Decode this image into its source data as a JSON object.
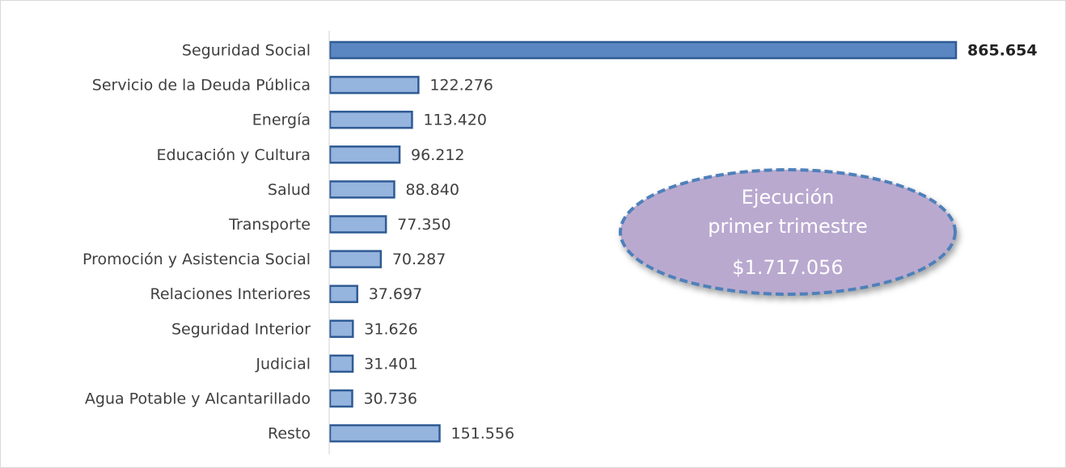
{
  "chart_data": {
    "type": "bar",
    "orientation": "horizontal",
    "categories": [
      "Seguridad Social",
      "Servicio de la Deuda Pública",
      "Energía",
      "Educación y Cultura",
      "Salud",
      "Transporte",
      "Promoción y Asistencia Social",
      "Relaciones Interiores",
      "Seguridad Interior",
      "Judicial",
      "Agua Potable y Alcantarillado",
      "Resto"
    ],
    "values": [
      865654,
      122276,
      113420,
      96212,
      88840,
      77350,
      70287,
      37697,
      31626,
      31401,
      30736,
      151556
    ],
    "value_labels": [
      "865.654",
      "122.276",
      "113.420",
      "96.212",
      "88.840",
      "77.350",
      "70.287",
      "37.697",
      "31.626",
      "31.401",
      "30.736",
      "151.556"
    ],
    "colors": [
      "#5a86c2",
      "#95b4de",
      "#95b4de",
      "#95b4de",
      "#95b4de",
      "#95b4de",
      "#95b4de",
      "#95b4de",
      "#95b4de",
      "#95b4de",
      "#95b4de",
      "#95b4de"
    ],
    "annotation": {
      "lines": [
        "Ejecución",
        "primer trimestre"
      ],
      "total": "$1.717.056"
    }
  }
}
